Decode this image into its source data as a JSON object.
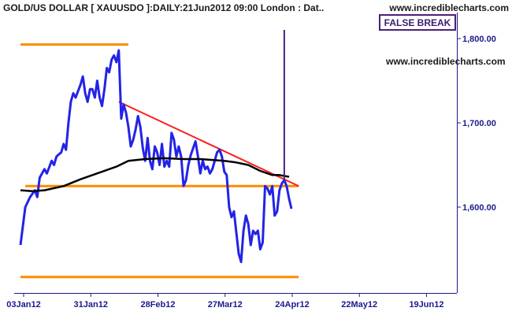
{
  "header": {
    "title": "GOLD/US DOLLAR [ XAUUSDO ]:DAILY:21Jun2012 09:00 London : Dat..",
    "site": "www.incrediblecharts.com",
    "site_corner": "www.incrediblecharts.com"
  },
  "colors": {
    "price": "#2323e6",
    "ma": "#000000",
    "levels": "#ff8c00",
    "trendline": "#ff1a1a",
    "annotation": "#4b1f7a",
    "axis": "#1a1a8c"
  },
  "chart_data": {
    "type": "line",
    "title": "GOLD/US DOLLAR [ XAUUSDO ]:DAILY:21Jun2012 09:00 London : Dat..",
    "x_ticks": [
      "03Jan12",
      "31Jan12",
      "28Feb12",
      "27Mar12",
      "24Apr12",
      "22May12",
      "19Jun12"
    ],
    "y_ticks": [
      "1,800.00",
      "1,700.00",
      "1,600.00"
    ],
    "y_tick_values": [
      1800,
      1700,
      1600
    ],
    "ylim": [
      1500,
      1830
    ],
    "xlim_days": [
      0,
      180
    ],
    "tick_days": [
      0,
      28,
      56,
      84,
      112,
      140,
      168
    ],
    "series": [
      {
        "kind": "price",
        "points": [
          [
            0,
            1555
          ],
          [
            2,
            1600
          ],
          [
            4,
            1612
          ],
          [
            6,
            1620
          ],
          [
            7,
            1612
          ],
          [
            8,
            1635
          ],
          [
            10,
            1645
          ],
          [
            11,
            1640
          ],
          [
            13,
            1655
          ],
          [
            14,
            1650
          ],
          [
            15,
            1660
          ],
          [
            17,
            1665
          ],
          [
            18,
            1675
          ],
          [
            19,
            1668
          ],
          [
            20,
            1700
          ],
          [
            21,
            1725
          ],
          [
            22,
            1735
          ],
          [
            23,
            1730
          ],
          [
            25,
            1745
          ],
          [
            26,
            1755
          ],
          [
            27,
            1735
          ],
          [
            28,
            1725
          ],
          [
            29,
            1740
          ],
          [
            30,
            1740
          ],
          [
            31,
            1730
          ],
          [
            32,
            1750
          ],
          [
            33,
            1730
          ],
          [
            34,
            1720
          ],
          [
            35,
            1740
          ],
          [
            36,
            1765
          ],
          [
            37,
            1760
          ],
          [
            38,
            1775
          ],
          [
            39,
            1780
          ],
          [
            40,
            1772
          ],
          [
            41,
            1786
          ],
          [
            42,
            1705
          ],
          [
            43,
            1722
          ],
          [
            44,
            1712
          ],
          [
            45,
            1695
          ],
          [
            46,
            1672
          ],
          [
            47,
            1680
          ],
          [
            48,
            1692
          ],
          [
            49,
            1708
          ],
          [
            50,
            1695
          ],
          [
            51,
            1670
          ],
          [
            52,
            1655
          ],
          [
            53,
            1682
          ],
          [
            54,
            1655
          ],
          [
            55,
            1645
          ],
          [
            56,
            1672
          ],
          [
            57,
            1665
          ],
          [
            58,
            1650
          ],
          [
            59,
            1675
          ],
          [
            60,
            1648
          ],
          [
            61,
            1655
          ],
          [
            62,
            1648
          ],
          [
            63,
            1688
          ],
          [
            64,
            1680
          ],
          [
            65,
            1660
          ],
          [
            66,
            1672
          ],
          [
            67,
            1660
          ],
          [
            68,
            1625
          ],
          [
            69,
            1632
          ],
          [
            70,
            1650
          ],
          [
            71,
            1662
          ],
          [
            72,
            1670
          ],
          [
            73,
            1678
          ],
          [
            74,
            1660
          ],
          [
            75,
            1640
          ],
          [
            76,
            1655
          ],
          [
            77,
            1645
          ],
          [
            78,
            1648
          ],
          [
            79,
            1640
          ],
          [
            80,
            1645
          ],
          [
            81,
            1655
          ],
          [
            82,
            1665
          ],
          [
            83,
            1668
          ],
          [
            84,
            1660
          ],
          [
            85,
            1642
          ],
          [
            86,
            1638
          ],
          [
            87,
            1600
          ],
          [
            88,
            1588
          ],
          [
            89,
            1595
          ],
          [
            90,
            1570
          ],
          [
            91,
            1545
          ],
          [
            92,
            1535
          ],
          [
            93,
            1572
          ],
          [
            94,
            1590
          ],
          [
            95,
            1580
          ],
          [
            96,
            1555
          ],
          [
            97,
            1572
          ],
          [
            98,
            1568
          ],
          [
            99,
            1572
          ],
          [
            100,
            1550
          ],
          [
            101,
            1558
          ],
          [
            102,
            1625
          ],
          [
            103,
            1622
          ],
          [
            104,
            1615
          ],
          [
            105,
            1625
          ],
          [
            106,
            1590
          ],
          [
            107,
            1595
          ],
          [
            108,
            1620
          ],
          [
            109,
            1628
          ],
          [
            110,
            1632
          ],
          [
            111,
            1625
          ],
          [
            112,
            1610
          ],
          [
            113,
            1598
          ]
        ]
      },
      {
        "kind": "moving-average",
        "points": [
          [
            0,
            1620
          ],
          [
            5,
            1619
          ],
          [
            10,
            1620
          ],
          [
            18,
            1625
          ],
          [
            25,
            1633
          ],
          [
            32,
            1640
          ],
          [
            40,
            1648
          ],
          [
            45,
            1655
          ],
          [
            52,
            1657
          ],
          [
            60,
            1658
          ],
          [
            68,
            1657
          ],
          [
            75,
            1657
          ],
          [
            85,
            1655
          ],
          [
            90,
            1653
          ],
          [
            95,
            1650
          ],
          [
            100,
            1643
          ],
          [
            105,
            1638
          ],
          [
            108,
            1638
          ],
          [
            112,
            1636
          ]
        ]
      }
    ],
    "levels": [
      {
        "name": "resistance",
        "y": 1793,
        "x_from": 0,
        "x_to": 45
      },
      {
        "name": "neckline",
        "y": 1625,
        "x_from": 2,
        "x_to": 116
      },
      {
        "name": "support",
        "y": 1517,
        "x_from": 0,
        "x_to": 116
      }
    ],
    "trendline": {
      "from": [
        41,
        1725
      ],
      "to": [
        116,
        1625
      ]
    },
    "annotation": {
      "text": "FALSE BREAK",
      "pointer_x": 110,
      "pointer_y": 1632
    }
  }
}
